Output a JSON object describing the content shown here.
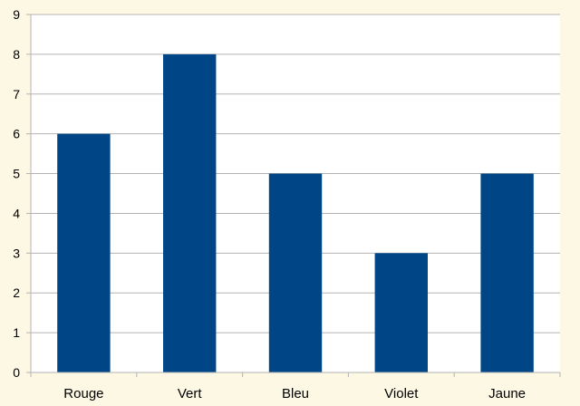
{
  "chart_data": {
    "type": "bar",
    "categories": [
      "Rouge",
      "Vert",
      "Bleu",
      "Violet",
      "Jaune"
    ],
    "values": [
      6,
      8,
      5,
      3,
      5
    ],
    "ylim": [
      0,
      9
    ],
    "yticks": [
      0,
      1,
      2,
      3,
      4,
      5,
      6,
      7,
      8,
      9
    ],
    "grid": true,
    "legend": "none",
    "title": "",
    "xlabel": "",
    "ylabel": "",
    "colors": {
      "bar": "#004586",
      "grid": "#b3b3b3",
      "plot_background": "#ffffff",
      "page_background": "#fdf8e4"
    }
  }
}
